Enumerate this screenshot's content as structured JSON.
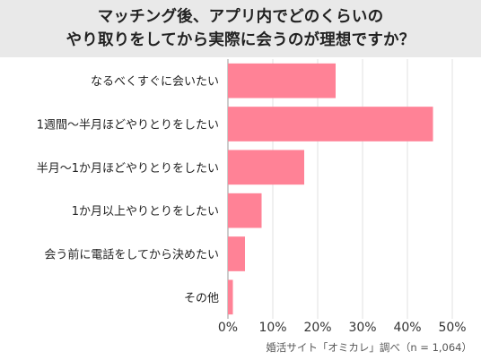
{
  "header": {
    "title_line1": "マッチング後、アプリ内でどのくらいの",
    "title_line2": "やり取りをしてから実際に会うのが理想ですか？"
  },
  "colors": {
    "bar": "#ff8296",
    "header_bg": "#e9e9e9",
    "grid": "#e2e2e2",
    "axis": "#999999"
  },
  "source": "婚活サイト「オミカレ」調べ（n = 1,064）",
  "chart_data": {
    "type": "bar",
    "orientation": "horizontal",
    "title": "マッチング後、アプリ内でどのくらいのやり取りをしてから実際に会うのが理想ですか？",
    "categories": [
      "なるべくすぐに会いたい",
      "1週間〜半月ほどやりとりをしたい",
      "半月〜1か月ほどやりとりをしたい",
      "1か月以上やりとりをしたい",
      "会う前に電話をしてから決めたい",
      "その他"
    ],
    "values": [
      24.0,
      45.7,
      17.0,
      7.5,
      3.8,
      1.1
    ],
    "unit": "%",
    "xlim": [
      0,
      50
    ],
    "xticks": [
      "0%",
      "10%",
      "20%",
      "30%",
      "40%",
      "50%"
    ],
    "grid": true,
    "legend": "none"
  }
}
